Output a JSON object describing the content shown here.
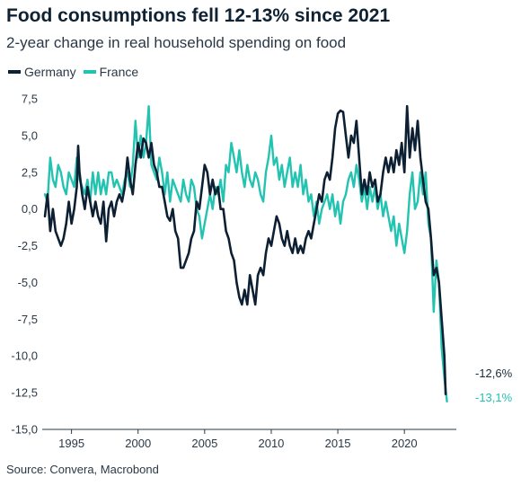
{
  "chart_data": {
    "type": "line",
    "title": "Food consumptions fell 12-13% since 2021",
    "subtitle": "2-year change in real household spending on food",
    "xlabel": "",
    "ylabel": "",
    "xlim": [
      1992.8,
      2023.9
    ],
    "ylim": [
      -15,
      7.5
    ],
    "x_ticks": [
      1995,
      2000,
      2005,
      2010,
      2015,
      2020
    ],
    "x_tick_labels": [
      "1995",
      "2000",
      "2005",
      "2010",
      "2015",
      "2020"
    ],
    "y_ticks": [
      7.5,
      5.0,
      2.5,
      0.0,
      -2.5,
      -5.0,
      -7.5,
      -10.0,
      -12.5,
      -15.0
    ],
    "y_tick_labels": [
      "7,5",
      "5,0",
      "2,5",
      "0,0",
      "-2,5",
      "-5,0",
      "-7,5",
      "-10,0",
      "-12,5",
      "-15,0"
    ],
    "grid": false,
    "legend_position": "top-left",
    "series": [
      {
        "name": "Germany",
        "color": "#0d1f33",
        "end_label": "-12,6%",
        "points": [
          [
            1993.0,
            -0.5
          ],
          [
            1993.2,
            1.0
          ],
          [
            1993.4,
            -1.5
          ],
          [
            1993.6,
            0.0
          ],
          [
            1993.8,
            -1.5
          ],
          [
            1994.0,
            -2.0
          ],
          [
            1994.2,
            -2.5
          ],
          [
            1994.4,
            -2.0
          ],
          [
            1994.6,
            -1.0
          ],
          [
            1994.8,
            0.5
          ],
          [
            1995.0,
            -1.0
          ],
          [
            1995.2,
            0.0
          ],
          [
            1995.4,
            1.5
          ],
          [
            1995.5,
            4.3
          ],
          [
            1995.6,
            2.5
          ],
          [
            1995.8,
            1.0
          ],
          [
            1996.0,
            0.0
          ],
          [
            1996.2,
            1.5
          ],
          [
            1996.4,
            0.5
          ],
          [
            1996.6,
            -0.5
          ],
          [
            1996.8,
            0.5
          ],
          [
            1997.0,
            -0.5
          ],
          [
            1997.2,
            -1.0
          ],
          [
            1997.4,
            0.5
          ],
          [
            1997.6,
            -2.2
          ],
          [
            1997.8,
            0.0
          ],
          [
            1998.0,
            0.5
          ],
          [
            1998.2,
            -0.5
          ],
          [
            1998.4,
            0.5
          ],
          [
            1998.6,
            1.0
          ],
          [
            1998.8,
            0.5
          ],
          [
            1999.0,
            1.5
          ],
          [
            1999.2,
            3.5
          ],
          [
            1999.4,
            2.0
          ],
          [
            1999.6,
            1.0
          ],
          [
            1999.8,
            3.0
          ],
          [
            2000.0,
            4.5
          ],
          [
            2000.2,
            3.5
          ],
          [
            2000.4,
            4.8
          ],
          [
            2000.6,
            4.5
          ],
          [
            2000.8,
            3.5
          ],
          [
            2001.0,
            4.5
          ],
          [
            2001.2,
            3.0
          ],
          [
            2001.4,
            2.5
          ],
          [
            2001.6,
            1.5
          ],
          [
            2001.8,
            1.5
          ],
          [
            2002.0,
            0.5
          ],
          [
            2002.2,
            -0.5
          ],
          [
            2002.4,
            -0.8
          ],
          [
            2002.6,
            0.0
          ],
          [
            2002.8,
            -1.5
          ],
          [
            2003.0,
            -2.0
          ],
          [
            2003.2,
            -4.0
          ],
          [
            2003.4,
            -4.0
          ],
          [
            2003.6,
            -3.5
          ],
          [
            2003.8,
            -3.0
          ],
          [
            2004.0,
            -2.0
          ],
          [
            2004.2,
            -1.5
          ],
          [
            2004.4,
            0.5
          ],
          [
            2004.6,
            0.0
          ],
          [
            2004.8,
            1.5
          ],
          [
            2005.0,
            3.0
          ],
          [
            2005.2,
            2.5
          ],
          [
            2005.4,
            1.0
          ],
          [
            2005.6,
            2.0
          ],
          [
            2005.8,
            1.0
          ],
          [
            2006.0,
            1.5
          ],
          [
            2006.2,
            0.0
          ],
          [
            2006.4,
            0.0
          ],
          [
            2006.6,
            -1.5
          ],
          [
            2006.8,
            -2.0
          ],
          [
            2007.0,
            -3.0
          ],
          [
            2007.2,
            -3.5
          ],
          [
            2007.4,
            -5.0
          ],
          [
            2007.6,
            -6.0
          ],
          [
            2007.8,
            -6.5
          ],
          [
            2008.0,
            -5.5
          ],
          [
            2008.2,
            -6.5
          ],
          [
            2008.4,
            -4.5
          ],
          [
            2008.6,
            -5.5
          ],
          [
            2008.8,
            -6.5
          ],
          [
            2009.0,
            -4.5
          ],
          [
            2009.2,
            -4.0
          ],
          [
            2009.4,
            -4.5
          ],
          [
            2009.6,
            -3.0
          ],
          [
            2009.8,
            -2.0
          ],
          [
            2010.0,
            -2.5
          ],
          [
            2010.2,
            -1.5
          ],
          [
            2010.4,
            -0.5
          ],
          [
            2010.6,
            -1.0
          ],
          [
            2010.8,
            -2.0
          ],
          [
            2011.0,
            -2.5
          ],
          [
            2011.2,
            -1.5
          ],
          [
            2011.4,
            -2.5
          ],
          [
            2011.6,
            -3.0
          ],
          [
            2011.8,
            -2.0
          ],
          [
            2012.0,
            -3.0
          ],
          [
            2012.2,
            -2.5
          ],
          [
            2012.4,
            -3.0
          ],
          [
            2012.6,
            -2.0
          ],
          [
            2012.8,
            -1.5
          ],
          [
            2013.0,
            -2.0
          ],
          [
            2013.2,
            -1.0
          ],
          [
            2013.4,
            0.0
          ],
          [
            2013.6,
            1.0
          ],
          [
            2013.8,
            0.5
          ],
          [
            2014.0,
            2.0
          ],
          [
            2014.2,
            2.5
          ],
          [
            2014.4,
            2.0
          ],
          [
            2014.6,
            3.5
          ],
          [
            2014.8,
            5.5
          ],
          [
            2015.0,
            6.5
          ],
          [
            2015.2,
            6.7
          ],
          [
            2015.4,
            6.6
          ],
          [
            2015.6,
            5.0
          ],
          [
            2015.8,
            3.5
          ],
          [
            2016.0,
            5.0
          ],
          [
            2016.2,
            4.5
          ],
          [
            2016.4,
            6.0
          ],
          [
            2016.6,
            3.5
          ],
          [
            2016.8,
            1.0
          ],
          [
            2017.0,
            2.0
          ],
          [
            2017.2,
            1.0
          ],
          [
            2017.4,
            2.5
          ],
          [
            2017.6,
            1.5
          ],
          [
            2017.8,
            2.0
          ],
          [
            2018.0,
            0.5
          ],
          [
            2018.2,
            1.0
          ],
          [
            2018.4,
            2.5
          ],
          [
            2018.6,
            3.5
          ],
          [
            2018.8,
            2.5
          ],
          [
            2019.0,
            3.5
          ],
          [
            2019.2,
            2.5
          ],
          [
            2019.4,
            4.0
          ],
          [
            2019.6,
            3.0
          ],
          [
            2019.8,
            4.5
          ],
          [
            2020.0,
            2.5
          ],
          [
            2020.2,
            7.0
          ],
          [
            2020.4,
            3.5
          ],
          [
            2020.6,
            5.5
          ],
          [
            2020.8,
            4.0
          ],
          [
            2021.0,
            6.0
          ],
          [
            2021.2,
            3.5
          ],
          [
            2021.4,
            2.0
          ],
          [
            2021.6,
            0.5
          ],
          [
            2021.8,
            0.0
          ],
          [
            2022.0,
            -2.0
          ],
          [
            2022.2,
            -4.5
          ],
          [
            2022.4,
            -4.0
          ],
          [
            2022.6,
            -5.0
          ],
          [
            2022.8,
            -7.5
          ],
          [
            2023.0,
            -10.0
          ],
          [
            2023.1,
            -12.6
          ]
        ]
      },
      {
        "name": "France",
        "color": "#22c3b0",
        "end_label": "-13,1%",
        "points": [
          [
            1993.0,
            1.0
          ],
          [
            1993.2,
            0.5
          ],
          [
            1993.4,
            3.5
          ],
          [
            1993.6,
            2.0
          ],
          [
            1993.8,
            1.5
          ],
          [
            1994.0,
            3.0
          ],
          [
            1994.2,
            2.5
          ],
          [
            1994.4,
            1.5
          ],
          [
            1994.6,
            1.0
          ],
          [
            1994.8,
            2.5
          ],
          [
            1995.0,
            2.0
          ],
          [
            1995.2,
            1.5
          ],
          [
            1995.4,
            3.5
          ],
          [
            1995.6,
            2.0
          ],
          [
            1995.8,
            1.5
          ],
          [
            1996.0,
            1.0
          ],
          [
            1996.2,
            2.0
          ],
          [
            1996.4,
            0.5
          ],
          [
            1996.6,
            2.5
          ],
          [
            1996.8,
            1.0
          ],
          [
            1997.0,
            2.5
          ],
          [
            1997.2,
            1.0
          ],
          [
            1997.4,
            2.0
          ],
          [
            1997.6,
            1.0
          ],
          [
            1997.8,
            2.5
          ],
          [
            1998.0,
            2.5
          ],
          [
            1998.2,
            1.5
          ],
          [
            1998.4,
            2.0
          ],
          [
            1998.6,
            1.5
          ],
          [
            1998.8,
            1.0
          ],
          [
            1999.0,
            2.0
          ],
          [
            1999.2,
            2.5
          ],
          [
            1999.4,
            1.5
          ],
          [
            1999.6,
            3.0
          ],
          [
            1999.8,
            6.0
          ],
          [
            2000.0,
            3.5
          ],
          [
            2000.2,
            5.0
          ],
          [
            2000.4,
            3.5
          ],
          [
            2000.6,
            4.5
          ],
          [
            2000.8,
            7.0
          ],
          [
            2001.0,
            3.0
          ],
          [
            2001.2,
            2.5
          ],
          [
            2001.4,
            2.0
          ],
          [
            2001.6,
            3.5
          ],
          [
            2001.8,
            2.5
          ],
          [
            2002.0,
            1.0
          ],
          [
            2002.2,
            2.5
          ],
          [
            2002.4,
            0.5
          ],
          [
            2002.6,
            2.0
          ],
          [
            2002.8,
            1.5
          ],
          [
            2003.0,
            1.0
          ],
          [
            2003.2,
            0.5
          ],
          [
            2003.4,
            2.0
          ],
          [
            2003.6,
            1.0
          ],
          [
            2003.8,
            0.5
          ],
          [
            2004.0,
            2.0
          ],
          [
            2004.2,
            1.5
          ],
          [
            2004.4,
            0.0
          ],
          [
            2004.6,
            -0.5
          ],
          [
            2004.8,
            -2.0
          ],
          [
            2005.0,
            -1.0
          ],
          [
            2005.2,
            0.0
          ],
          [
            2005.4,
            1.0
          ],
          [
            2005.6,
            0.0
          ],
          [
            2005.8,
            1.5
          ],
          [
            2006.0,
            1.0
          ],
          [
            2006.2,
            2.0
          ],
          [
            2006.4,
            0.5
          ],
          [
            2006.6,
            3.0
          ],
          [
            2006.8,
            2.5
          ],
          [
            2007.0,
            4.5
          ],
          [
            2007.2,
            3.5
          ],
          [
            2007.4,
            2.5
          ],
          [
            2007.6,
            4.0
          ],
          [
            2007.8,
            2.5
          ],
          [
            2008.0,
            1.5
          ],
          [
            2008.2,
            3.0
          ],
          [
            2008.4,
            2.0
          ],
          [
            2008.6,
            1.5
          ],
          [
            2008.8,
            2.5
          ],
          [
            2009.0,
            2.0
          ],
          [
            2009.2,
            1.0
          ],
          [
            2009.4,
            0.5
          ],
          [
            2009.6,
            2.5
          ],
          [
            2009.8,
            3.5
          ],
          [
            2010.0,
            5.0
          ],
          [
            2010.2,
            3.0
          ],
          [
            2010.4,
            3.5
          ],
          [
            2010.6,
            2.0
          ],
          [
            2010.8,
            3.0
          ],
          [
            2011.0,
            1.5
          ],
          [
            2011.2,
            2.5
          ],
          [
            2011.4,
            3.5
          ],
          [
            2011.6,
            1.5
          ],
          [
            2011.8,
            2.5
          ],
          [
            2012.0,
            1.5
          ],
          [
            2012.2,
            3.0
          ],
          [
            2012.4,
            1.0
          ],
          [
            2012.6,
            2.0
          ],
          [
            2012.8,
            0.5
          ],
          [
            2013.0,
            1.0
          ],
          [
            2013.2,
            -0.5
          ],
          [
            2013.4,
            0.5
          ],
          [
            2013.6,
            -1.0
          ],
          [
            2013.8,
            0.0
          ],
          [
            2014.0,
            0.5
          ],
          [
            2014.2,
            1.0
          ],
          [
            2014.4,
            0.0
          ],
          [
            2014.6,
            1.0
          ],
          [
            2014.8,
            -0.5
          ],
          [
            2015.0,
            0.5
          ],
          [
            2015.2,
            -1.0
          ],
          [
            2015.4,
            0.5
          ],
          [
            2015.6,
            1.0
          ],
          [
            2015.8,
            2.0
          ],
          [
            2016.0,
            2.5
          ],
          [
            2016.2,
            1.5
          ],
          [
            2016.4,
            3.0
          ],
          [
            2016.6,
            2.0
          ],
          [
            2016.8,
            0.5
          ],
          [
            2017.0,
            1.5
          ],
          [
            2017.2,
            0.0
          ],
          [
            2017.4,
            1.5
          ],
          [
            2017.6,
            0.5
          ],
          [
            2017.8,
            1.5
          ],
          [
            2018.0,
            0.0
          ],
          [
            2018.2,
            1.0
          ],
          [
            2018.4,
            -0.5
          ],
          [
            2018.6,
            0.5
          ],
          [
            2018.8,
            -0.5
          ],
          [
            2019.0,
            -1.5
          ],
          [
            2019.2,
            -0.5
          ],
          [
            2019.4,
            -2.5
          ],
          [
            2019.6,
            -1.0
          ],
          [
            2019.8,
            -2.0
          ],
          [
            2020.0,
            -3.0
          ],
          [
            2020.2,
            -1.5
          ],
          [
            2020.4,
            1.0
          ],
          [
            2020.6,
            2.5
          ],
          [
            2020.8,
            0.0
          ],
          [
            2021.0,
            0.5
          ],
          [
            2021.2,
            2.5
          ],
          [
            2021.4,
            1.0
          ],
          [
            2021.6,
            2.5
          ],
          [
            2021.8,
            -1.0
          ],
          [
            2022.0,
            -2.0
          ],
          [
            2022.2,
            -7.0
          ],
          [
            2022.4,
            -3.5
          ],
          [
            2022.6,
            -5.0
          ],
          [
            2022.8,
            -9.5
          ],
          [
            2023.0,
            -11.5
          ],
          [
            2023.2,
            -13.1
          ]
        ]
      }
    ]
  },
  "footer": {
    "source": "Source: Convera, Macrobond"
  }
}
